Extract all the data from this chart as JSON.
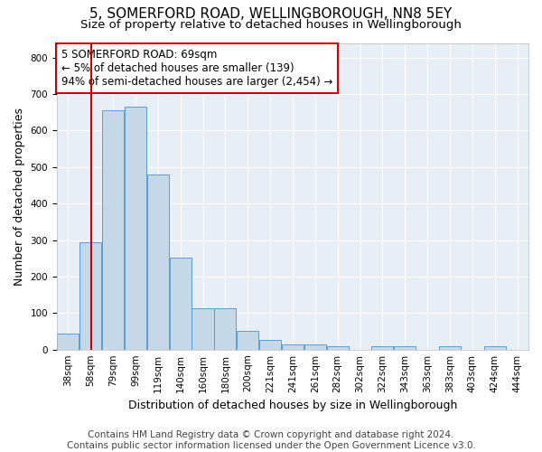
{
  "title1": "5, SOMERFORD ROAD, WELLINGBOROUGH, NN8 5EY",
  "title2": "Size of property relative to detached houses in Wellingborough",
  "xlabel": "Distribution of detached houses by size in Wellingborough",
  "ylabel": "Number of detached properties",
  "bin_labels": [
    "38sqm",
    "58sqm",
    "79sqm",
    "99sqm",
    "119sqm",
    "140sqm",
    "160sqm",
    "180sqm",
    "200sqm",
    "221sqm",
    "241sqm",
    "261sqm",
    "282sqm",
    "302sqm",
    "322sqm",
    "343sqm",
    "363sqm",
    "383sqm",
    "403sqm",
    "424sqm",
    "444sqm"
  ],
  "bar_heights": [
    45,
    295,
    655,
    665,
    480,
    252,
    113,
    113,
    50,
    27,
    15,
    15,
    8,
    0,
    8,
    8,
    0,
    8,
    0,
    8,
    0
  ],
  "bar_color": "#c5d8e8",
  "bar_edge_color": "#5b9bd5",
  "property_size": 69,
  "property_bin_index": 1,
  "property_bin_low": 58,
  "property_bin_high": 79,
  "annotation_text_line1": "5 SOMERFORD ROAD: 69sqm",
  "annotation_text_line2": "← 5% of detached houses are smaller (139)",
  "annotation_text_line3": "94% of semi-detached houses are larger (2,454) →",
  "annotation_box_facecolor": "#ffffff",
  "annotation_box_edgecolor": "#cc0000",
  "vline_color": "#cc0000",
  "ylim": [
    0,
    840
  ],
  "yticks": [
    0,
    100,
    200,
    300,
    400,
    500,
    600,
    700,
    800
  ],
  "footer1": "Contains HM Land Registry data © Crown copyright and database right 2024.",
  "footer2": "Contains public sector information licensed under the Open Government Licence v3.0.",
  "fig_facecolor": "#ffffff",
  "plot_facecolor": "#e8eef5",
  "title1_fontsize": 11,
  "title2_fontsize": 9.5,
  "xlabel_fontsize": 9,
  "ylabel_fontsize": 9,
  "tick_fontsize": 7.5,
  "annotation_fontsize": 8.5,
  "footer_fontsize": 7.5
}
